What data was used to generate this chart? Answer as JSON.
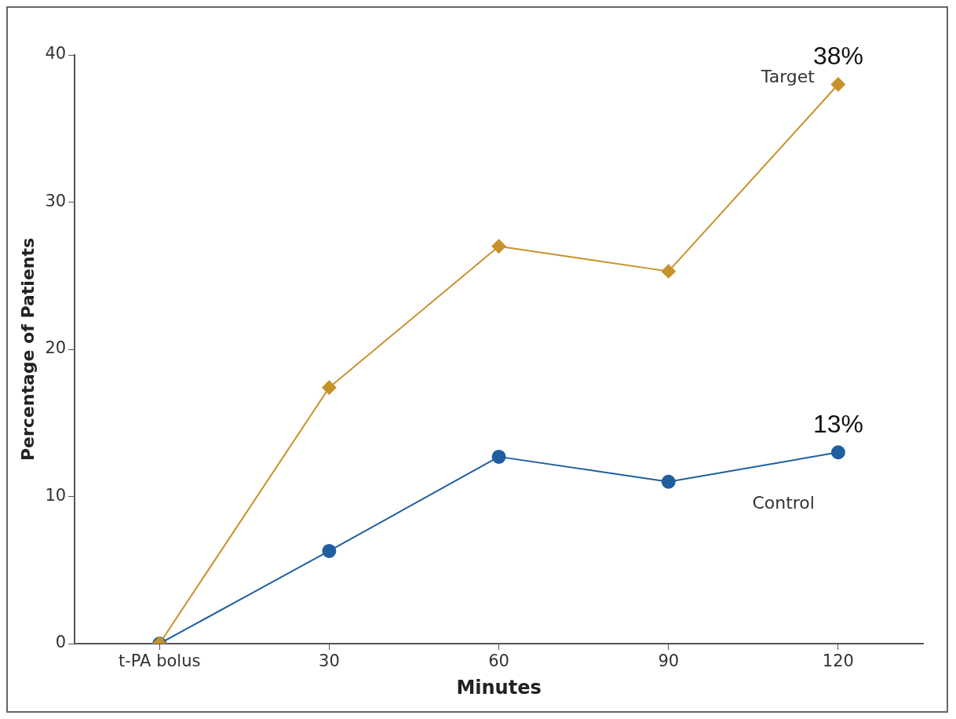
{
  "chart_data": {
    "type": "line",
    "xlabel": "Minutes",
    "ylabel": "Percentage of Patients",
    "categories": [
      "t-PA bolus",
      "30",
      "60",
      "90",
      "120"
    ],
    "series": [
      {
        "name": "Target",
        "color": "#c8922a",
        "marker": "diamond",
        "values": [
          0,
          17.4,
          27.0,
          25.3,
          38
        ]
      },
      {
        "name": "Control",
        "color": "#1f5fa0",
        "marker": "circle",
        "values": [
          0,
          6.3,
          12.7,
          11.0,
          13
        ]
      }
    ],
    "ylim": [
      0,
      40
    ],
    "yticks": [
      0,
      10,
      20,
      30,
      40
    ],
    "grid": false,
    "legend": false,
    "annotations": [
      {
        "text": "38%",
        "x": "120",
        "y": 38
      },
      {
        "text": "13%",
        "x": "120",
        "y": 13
      }
    ]
  }
}
